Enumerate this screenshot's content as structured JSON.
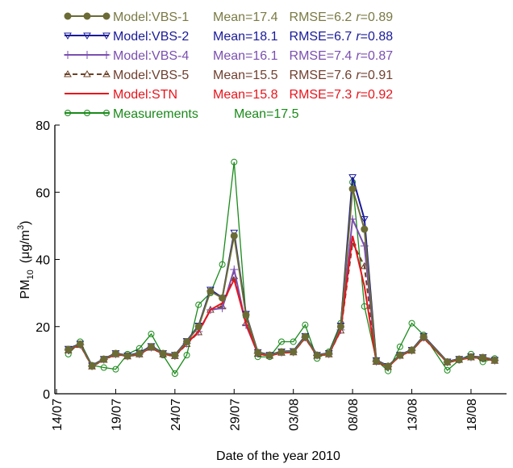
{
  "chart_data": {
    "type": "line",
    "xlabel": "Date of the year 2010",
    "ylabel": {
      "base": "PM",
      "sub": "10",
      "unit": "(μg/m",
      "sup": "3",
      "close": ")"
    },
    "r_symbol": "r",
    "x": [
      "15/07",
      "16/07",
      "17/07",
      "18/07",
      "19/07",
      "20/07",
      "21/07",
      "22/07",
      "23/07",
      "24/07",
      "25/07",
      "26/07",
      "27/07",
      "28/07",
      "29/07",
      "30/07",
      "31/07",
      "01/08",
      "02/08",
      "03/08",
      "04/08",
      "05/08",
      "06/08",
      "07/08",
      "08/08",
      "09/08",
      "10/08",
      "11/08",
      "12/08",
      "13/08",
      "14/08",
      "16/08",
      "17/08",
      "18/08",
      "19/08",
      "20/08"
    ],
    "xlim": [
      "14/07",
      "21/08"
    ],
    "xticks": [
      "14/07",
      "19/07",
      "24/07",
      "29/07",
      "03/08",
      "08/08",
      "13/08",
      "18/08"
    ],
    "ylim": [
      0,
      80
    ],
    "yticks": [
      0,
      20,
      40,
      60,
      80
    ],
    "series": [
      {
        "name": "Model:VBS-1",
        "mean": "Mean=17.4",
        "rmse": "RMSE=6.2",
        "r": "=0.89",
        "color": "#6b6b35",
        "text_color": "#7a7a45",
        "marker": "filled-circle",
        "dash": "none",
        "values": [
          13.2,
          14.8,
          8.3,
          10.3,
          12,
          11.3,
          12,
          14,
          12,
          11.5,
          15.5,
          20,
          30.5,
          28.5,
          47,
          23.5,
          12.3,
          11.5,
          12.5,
          12.5,
          17,
          11.5,
          12,
          20,
          61,
          49,
          9.8,
          8.2,
          11.5,
          13,
          17,
          9.5,
          10.3,
          11,
          10.8,
          10
        ]
      },
      {
        "name": "Model:VBS-2",
        "mean": "Mean=18.1",
        "rmse": "RMSE=6.7",
        "r": "=0.88",
        "color": "#1a1a9a",
        "text_color": "#1a1a9a",
        "marker": "down-triangle",
        "dash": "none",
        "values": [
          13.4,
          14.9,
          8.4,
          10.4,
          12.1,
          11.4,
          12.2,
          14.2,
          12.1,
          11.6,
          15.7,
          20.3,
          31,
          28.6,
          48,
          23.8,
          12.4,
          11.6,
          12.6,
          12.7,
          17.2,
          11.6,
          12.1,
          20.3,
          64.5,
          52,
          10,
          8.3,
          11.6,
          13.1,
          17.2,
          9.6,
          10.4,
          11.1,
          10.9,
          10.1
        ]
      },
      {
        "name": "Model:VBS-4",
        "mean": "Mean=16.1",
        "rmse": "RMSE=7.4",
        "r": "=0.87",
        "color": "#7b4fb0",
        "text_color": "#7b4fb0",
        "marker": "plus",
        "dash": "none",
        "values": [
          13,
          14.6,
          8.2,
          10.2,
          11.8,
          11.2,
          11.8,
          13.8,
          11.8,
          11.3,
          15,
          18.5,
          25,
          25.5,
          37,
          20.5,
          12,
          11.4,
          12.3,
          12.4,
          16.8,
          11.4,
          11.8,
          19,
          52,
          44,
          9.6,
          8.1,
          11.4,
          12.9,
          16.8,
          9.4,
          10.2,
          10.9,
          10.7,
          9.9
        ]
      },
      {
        "name": "Model:VBS-5",
        "mean": "Mean=15.5",
        "rmse": "RMSE=7.6",
        "r": "=0.91",
        "color": "#6b4226",
        "text_color": "#704030",
        "marker": "up-triangle",
        "dash": "6,4",
        "values": [
          12.9,
          14.5,
          8.1,
          10.1,
          11.7,
          11.1,
          11.7,
          13.7,
          11.7,
          11.2,
          14.8,
          18.3,
          25,
          26,
          35,
          21,
          11.9,
          11.3,
          12.2,
          12.3,
          16.6,
          11.3,
          11.7,
          18.8,
          45,
          38,
          9.5,
          8,
          11.3,
          12.8,
          16.6,
          9.3,
          10.1,
          10.8,
          10.6,
          9.8
        ]
      },
      {
        "name": "Model:STN",
        "mean": "Mean=15.8",
        "rmse": "RMSE=7.3",
        "r": "=0.92",
        "color": "#e8141c",
        "text_color": "#e8141c",
        "marker": "none",
        "dash": "none",
        "values": [
          13,
          14.6,
          8.2,
          10.2,
          11.8,
          11.2,
          11.8,
          13.8,
          11.8,
          11.3,
          15,
          18.5,
          25,
          27,
          34,
          21,
          11.9,
          11.3,
          12.2,
          12.3,
          16.7,
          11.3,
          11.8,
          19,
          47,
          32,
          9.6,
          8,
          11.3,
          12.8,
          16.7,
          9.3,
          10.1,
          10.8,
          10.6,
          9.8
        ]
      },
      {
        "name": "Measurements",
        "mean": "Mean=17.5",
        "color": "#1a8a1a",
        "text_color": "#1a8a1a",
        "marker": "open-circle",
        "dash": "none",
        "values": [
          11.8,
          15.5,
          8.5,
          7.8,
          7.3,
          11.8,
          13.5,
          17.8,
          11.5,
          6,
          11.5,
          26.5,
          30,
          38.5,
          69,
          23,
          11,
          11,
          15.5,
          15.5,
          20.5,
          10.5,
          12.5,
          21,
          63,
          26,
          10,
          6.8,
          14,
          21,
          17.5,
          7,
          10,
          11.8,
          9.5,
          10.5
        ]
      }
    ]
  }
}
